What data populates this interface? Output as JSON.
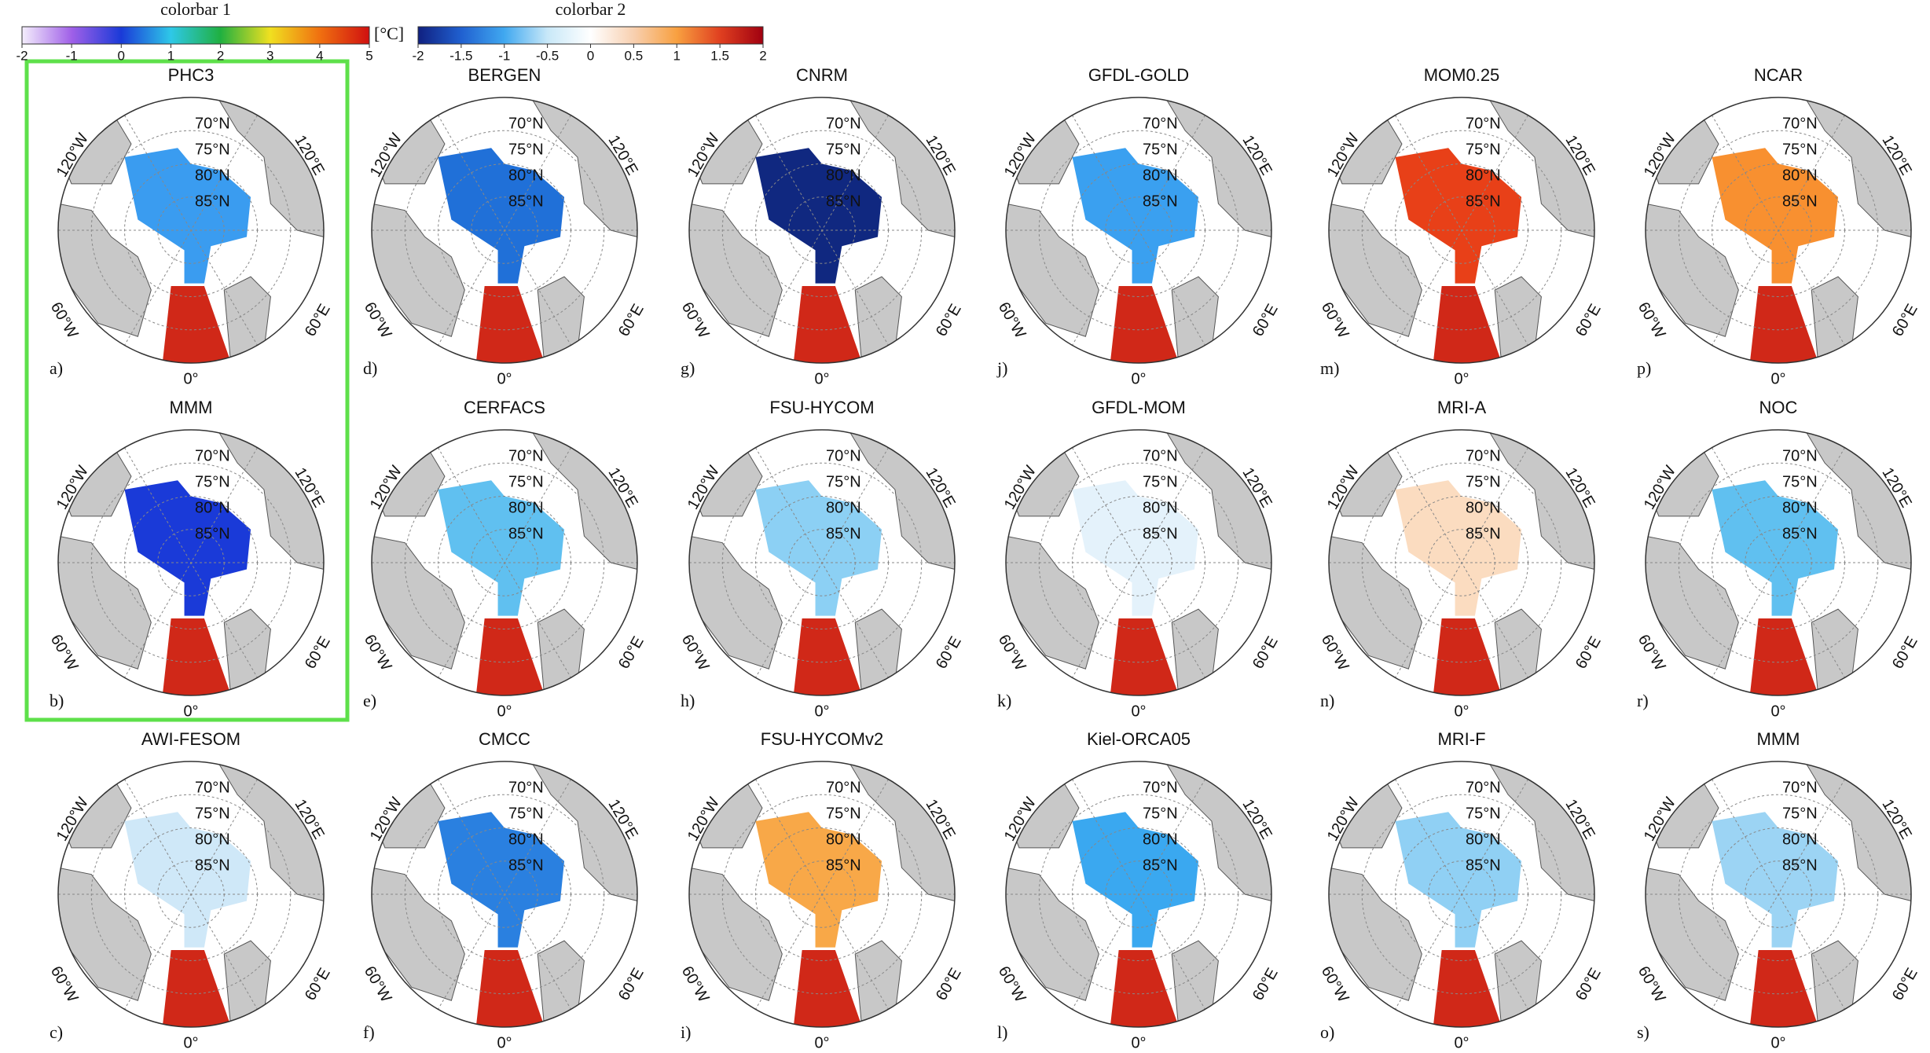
{
  "colorbars": [
    {
      "title": "colorbar 1",
      "unit": "[°C]",
      "lim": [
        -2,
        5
      ],
      "ticks": [
        -2,
        -1,
        0,
        1,
        2,
        3,
        4,
        5
      ],
      "colors": [
        "#f4eefc",
        "#a060e8",
        "#1a3ad8",
        "#2ec8e8",
        "#20b040",
        "#f0e020",
        "#f07010",
        "#d01010"
      ]
    },
    {
      "title": "colorbar 2",
      "lim": [
        -2,
        2
      ],
      "ticks": [
        -2,
        -1.5,
        -1,
        -0.5,
        0,
        0.5,
        1,
        1.5,
        2
      ],
      "colors": [
        "#102080",
        "#2060d0",
        "#40a8f0",
        "#c8e8f8",
        "#ffffff",
        "#f8d0b0",
        "#f8a040",
        "#e04020",
        "#a00010"
      ]
    }
  ],
  "map_labels": {
    "latitudes": [
      "70°N",
      "75°N",
      "80°N",
      "85°N"
    ],
    "longitudes": [
      "120°W",
      "120°E",
      "60°W",
      "60°E",
      "0°"
    ]
  },
  "panels": [
    {
      "title": "PHC3",
      "letter": "a)",
      "color": "#3a9cf0"
    },
    {
      "title": "MMM",
      "letter": "b)",
      "color": "#1a3ad8"
    },
    {
      "title": "AWI-FESOM",
      "letter": "c)",
      "color": "#cfe8f8"
    },
    {
      "title": "BERGEN",
      "letter": "d)",
      "color": "#2070d8"
    },
    {
      "title": "CERFACS",
      "letter": "e)",
      "color": "#60c0f0"
    },
    {
      "title": "CMCC",
      "letter": "f)",
      "color": "#2a80e0"
    },
    {
      "title": "CNRM",
      "letter": "g)",
      "color": "#102880"
    },
    {
      "title": "FSU-HYCOM",
      "letter": "h)",
      "color": "#8cd0f4"
    },
    {
      "title": "FSU-HYCOMv2",
      "letter": "i)",
      "color": "#f8a848"
    },
    {
      "title": "GFDL-GOLD",
      "letter": "j)",
      "color": "#3aa0f0"
    },
    {
      "title": "GFDL-MOM",
      "letter": "k)",
      "color": "#e4f2fb"
    },
    {
      "title": "Kiel-ORCA05",
      "letter": "l)",
      "color": "#3aa8f0"
    },
    {
      "title": "MOM0.25",
      "letter": "m)",
      "color": "#e84018"
    },
    {
      "title": "MRI-A",
      "letter": "n)",
      "color": "#fbdcc0"
    },
    {
      "title": "MRI-F",
      "letter": "o)",
      "color": "#90d0f4"
    },
    {
      "title": "NCAR",
      "letter": "p)",
      "color": "#f89030"
    },
    {
      "title": "NOC",
      "letter": "r)",
      "color": "#60c0f0"
    },
    {
      "title": "MMM",
      "letter": "s)",
      "color": "#9cd4f4"
    }
  ]
}
